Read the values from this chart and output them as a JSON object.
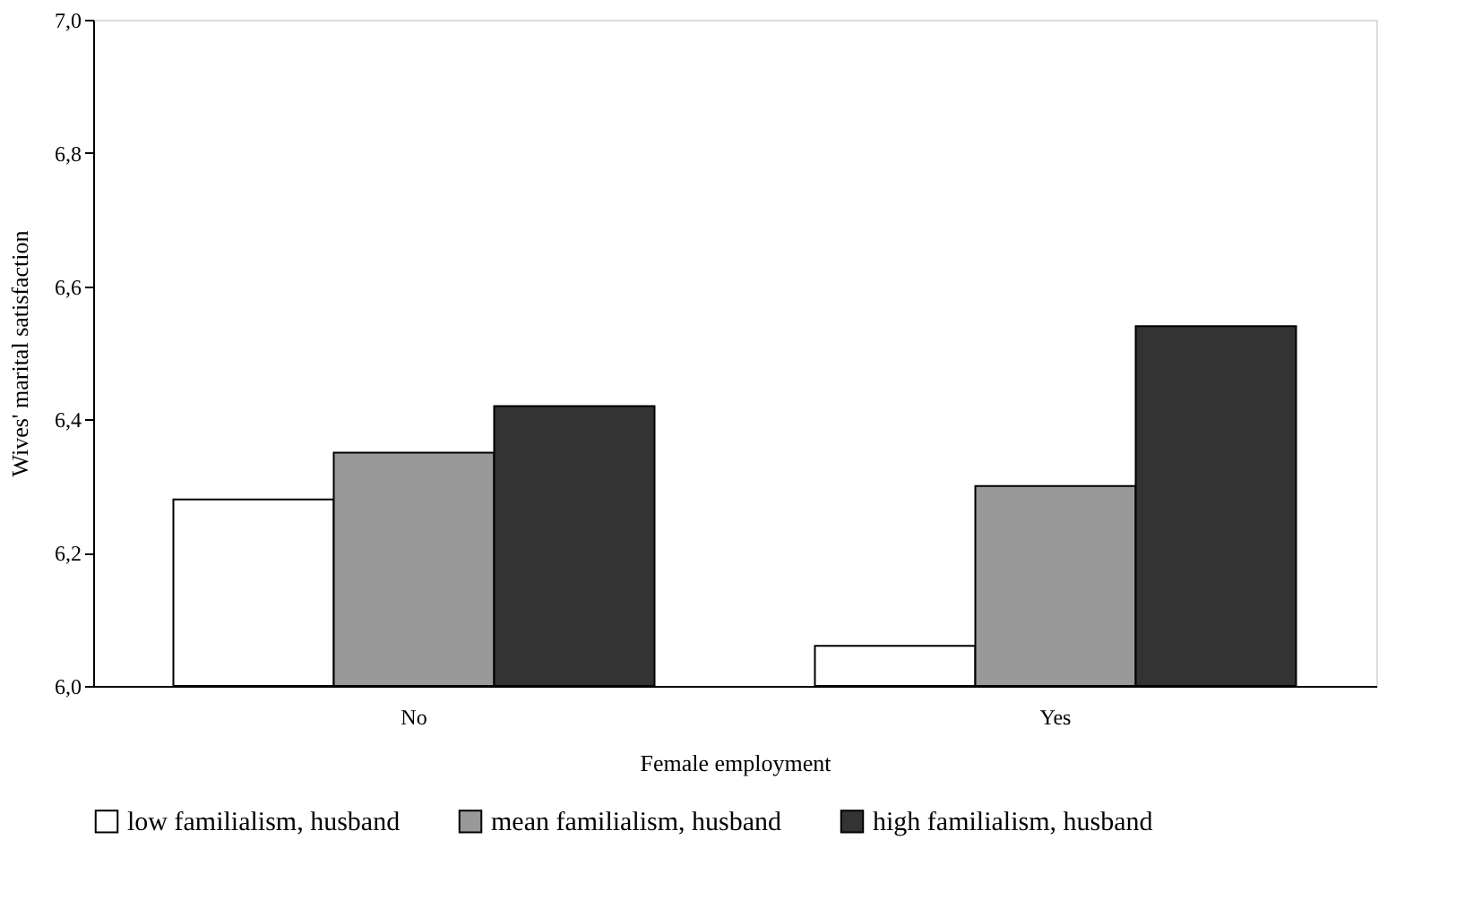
{
  "chart_data": {
    "type": "bar",
    "xlabel": "Female employment",
    "ylabel": "Wives' marital satisfaction",
    "categories": [
      "No",
      "Yes"
    ],
    "series": [
      {
        "name": "low familialism, husband",
        "color": "#ffffff",
        "values": [
          6.28,
          6.06
        ]
      },
      {
        "name": "mean familialism, husband",
        "color": "#999999",
        "values": [
          6.35,
          6.3
        ]
      },
      {
        "name": "high familialism, husband",
        "color": "#333333",
        "values": [
          6.42,
          6.54
        ]
      }
    ],
    "ylim": [
      6.0,
      7.0
    ],
    "yticks": [
      {
        "value": 6.0,
        "label": "6,0"
      },
      {
        "value": 6.2,
        "label": "6,2"
      },
      {
        "value": 6.4,
        "label": "6,4"
      },
      {
        "value": 6.6,
        "label": "6,6"
      },
      {
        "value": 6.8,
        "label": "6,8"
      },
      {
        "value": 7.0,
        "label": "7,0"
      }
    ],
    "grid": false,
    "legend": "bottom"
  }
}
